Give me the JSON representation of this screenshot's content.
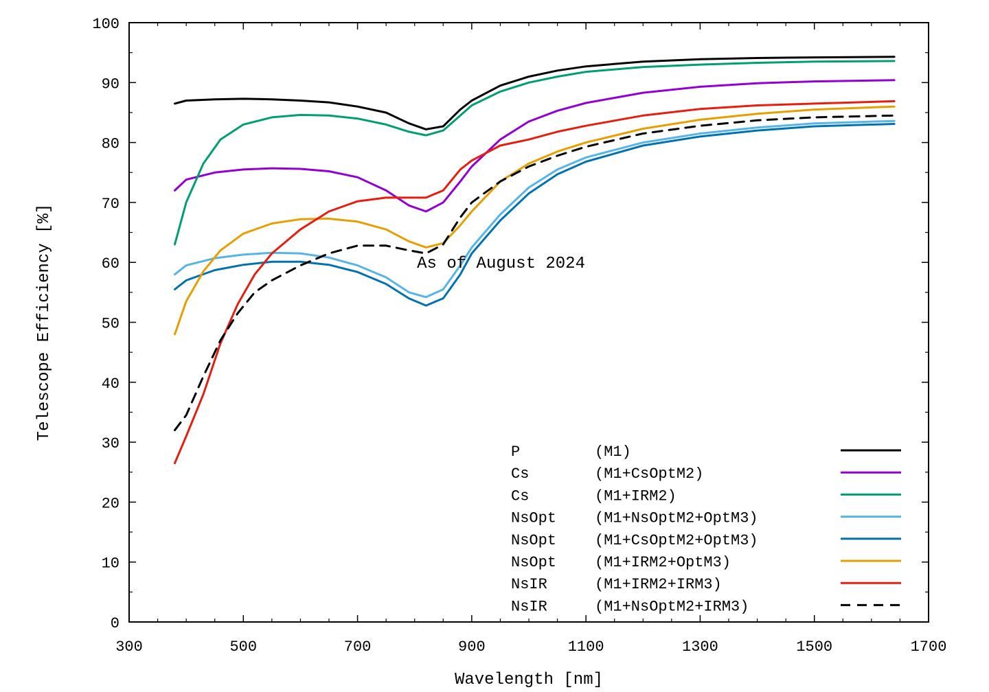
{
  "chart_data": {
    "type": "line",
    "title": "",
    "xlabel": "Wavelength [nm]",
    "ylabel": "Telescope Efficiency [%]",
    "xlim": [
      300,
      1700
    ],
    "ylim": [
      0,
      100
    ],
    "xticks": [
      300,
      500,
      700,
      900,
      1100,
      1300,
      1500,
      1700
    ],
    "yticks": [
      0,
      10,
      20,
      30,
      40,
      50,
      60,
      70,
      80,
      90,
      100
    ],
    "grid": false,
    "legend_position": "bottom-right",
    "annotation": "As of August 2024",
    "series": [
      {
        "label": "P",
        "config": "(M1)",
        "color": "#000000",
        "dash": "solid",
        "points": [
          [
            380,
            86.5
          ],
          [
            400,
            87.0
          ],
          [
            450,
            87.2
          ],
          [
            500,
            87.3
          ],
          [
            550,
            87.2
          ],
          [
            600,
            87.0
          ],
          [
            650,
            86.7
          ],
          [
            700,
            86.0
          ],
          [
            750,
            85.0
          ],
          [
            790,
            83.2
          ],
          [
            820,
            82.2
          ],
          [
            850,
            82.7
          ],
          [
            880,
            85.5
          ],
          [
            900,
            87.0
          ],
          [
            950,
            89.5
          ],
          [
            1000,
            91.0
          ],
          [
            1050,
            92.0
          ],
          [
            1100,
            92.7
          ],
          [
            1200,
            93.5
          ],
          [
            1300,
            93.9
          ],
          [
            1400,
            94.1
          ],
          [
            1500,
            94.2
          ],
          [
            1640,
            94.3
          ]
        ]
      },
      {
        "label": "Cs",
        "config": "(M1+CsOptM2)",
        "color": "#9400d3",
        "dash": "solid",
        "points": [
          [
            380,
            72.0
          ],
          [
            400,
            73.8
          ],
          [
            450,
            75.0
          ],
          [
            500,
            75.5
          ],
          [
            550,
            75.7
          ],
          [
            600,
            75.6
          ],
          [
            650,
            75.2
          ],
          [
            700,
            74.2
          ],
          [
            750,
            72.0
          ],
          [
            790,
            69.5
          ],
          [
            820,
            68.5
          ],
          [
            850,
            70.0
          ],
          [
            880,
            73.5
          ],
          [
            900,
            76.0
          ],
          [
            950,
            80.5
          ],
          [
            1000,
            83.5
          ],
          [
            1050,
            85.3
          ],
          [
            1100,
            86.6
          ],
          [
            1200,
            88.3
          ],
          [
            1300,
            89.3
          ],
          [
            1400,
            89.9
          ],
          [
            1500,
            90.2
          ],
          [
            1640,
            90.4
          ]
        ]
      },
      {
        "label": "Cs",
        "config": "(M1+IRM2)",
        "color": "#009e73",
        "dash": "solid",
        "points": [
          [
            380,
            63.0
          ],
          [
            400,
            70.0
          ],
          [
            430,
            76.5
          ],
          [
            460,
            80.5
          ],
          [
            500,
            83.0
          ],
          [
            550,
            84.2
          ],
          [
            600,
            84.6
          ],
          [
            650,
            84.5
          ],
          [
            700,
            84.0
          ],
          [
            750,
            83.0
          ],
          [
            790,
            81.8
          ],
          [
            820,
            81.2
          ],
          [
            850,
            82.0
          ],
          [
            880,
            84.5
          ],
          [
            900,
            86.2
          ],
          [
            950,
            88.5
          ],
          [
            1000,
            90.0
          ],
          [
            1050,
            91.0
          ],
          [
            1100,
            91.8
          ],
          [
            1200,
            92.6
          ],
          [
            1300,
            93.0
          ],
          [
            1400,
            93.3
          ],
          [
            1500,
            93.5
          ],
          [
            1640,
            93.6
          ]
        ]
      },
      {
        "label": "NsOpt",
        "config": "(M1+NsOptM2+OptM3)",
        "color": "#56b4e9",
        "dash": "solid",
        "points": [
          [
            380,
            58.0
          ],
          [
            400,
            59.5
          ],
          [
            450,
            60.7
          ],
          [
            500,
            61.3
          ],
          [
            550,
            61.6
          ],
          [
            600,
            61.5
          ],
          [
            650,
            60.8
          ],
          [
            700,
            59.5
          ],
          [
            750,
            57.5
          ],
          [
            790,
            55.0
          ],
          [
            820,
            54.2
          ],
          [
            850,
            55.5
          ],
          [
            880,
            59.5
          ],
          [
            900,
            62.5
          ],
          [
            950,
            68.0
          ],
          [
            1000,
            72.5
          ],
          [
            1050,
            75.5
          ],
          [
            1100,
            77.5
          ],
          [
            1200,
            80.0
          ],
          [
            1300,
            81.5
          ],
          [
            1400,
            82.5
          ],
          [
            1500,
            83.2
          ],
          [
            1640,
            83.6
          ]
        ]
      },
      {
        "label": "NsOpt",
        "config": "(M1+CsOptM2+OptM3)",
        "color": "#0072b2",
        "dash": "solid",
        "points": [
          [
            380,
            55.5
          ],
          [
            400,
            57.0
          ],
          [
            450,
            58.7
          ],
          [
            500,
            59.6
          ],
          [
            550,
            60.1
          ],
          [
            600,
            60.1
          ],
          [
            650,
            59.6
          ],
          [
            700,
            58.4
          ],
          [
            750,
            56.4
          ],
          [
            790,
            54.0
          ],
          [
            820,
            52.8
          ],
          [
            850,
            54.0
          ],
          [
            880,
            58.0
          ],
          [
            900,
            61.5
          ],
          [
            950,
            67.0
          ],
          [
            1000,
            71.5
          ],
          [
            1050,
            74.7
          ],
          [
            1100,
            76.8
          ],
          [
            1200,
            79.5
          ],
          [
            1300,
            81.0
          ],
          [
            1400,
            82.0
          ],
          [
            1500,
            82.7
          ],
          [
            1640,
            83.1
          ]
        ]
      },
      {
        "label": "NsOpt",
        "config": "(M1+IRM2+OptM3)",
        "color": "#e69f00",
        "dash": "solid",
        "points": [
          [
            380,
            48.0
          ],
          [
            400,
            53.5
          ],
          [
            430,
            58.5
          ],
          [
            460,
            62.0
          ],
          [
            500,
            64.8
          ],
          [
            550,
            66.5
          ],
          [
            600,
            67.2
          ],
          [
            650,
            67.3
          ],
          [
            700,
            66.8
          ],
          [
            750,
            65.5
          ],
          [
            790,
            63.5
          ],
          [
            820,
            62.5
          ],
          [
            850,
            63.2
          ],
          [
            880,
            66.2
          ],
          [
            900,
            68.5
          ],
          [
            950,
            73.5
          ],
          [
            1000,
            76.5
          ],
          [
            1050,
            78.5
          ],
          [
            1100,
            80.0
          ],
          [
            1200,
            82.3
          ],
          [
            1300,
            83.8
          ],
          [
            1400,
            84.8
          ],
          [
            1500,
            85.5
          ],
          [
            1640,
            86.0
          ]
        ]
      },
      {
        "label": "NsIR",
        "config": "(M1+IRM2+IRM3)",
        "color": "#e51e10",
        "dash": "solid",
        "points": [
          [
            380,
            26.5
          ],
          [
            400,
            31.0
          ],
          [
            430,
            38.0
          ],
          [
            460,
            46.5
          ],
          [
            490,
            53.0
          ],
          [
            520,
            58.0
          ],
          [
            550,
            61.5
          ],
          [
            600,
            65.5
          ],
          [
            650,
            68.5
          ],
          [
            700,
            70.2
          ],
          [
            750,
            70.8
          ],
          [
            790,
            70.8
          ],
          [
            820,
            70.8
          ],
          [
            850,
            72.0
          ],
          [
            880,
            75.5
          ],
          [
            900,
            77.0
          ],
          [
            950,
            79.5
          ],
          [
            1000,
            80.5
          ],
          [
            1050,
            81.8
          ],
          [
            1100,
            82.8
          ],
          [
            1200,
            84.5
          ],
          [
            1300,
            85.6
          ],
          [
            1400,
            86.2
          ],
          [
            1500,
            86.5
          ],
          [
            1640,
            86.9
          ]
        ]
      },
      {
        "label": "NsIR",
        "config": "(M1+NsOptM2+IRM3)",
        "color": "#000000",
        "dash": "dashed",
        "points": [
          [
            380,
            32.0
          ],
          [
            400,
            34.5
          ],
          [
            430,
            41.0
          ],
          [
            460,
            47.0
          ],
          [
            490,
            51.5
          ],
          [
            520,
            55.0
          ],
          [
            550,
            57.0
          ],
          [
            600,
            59.5
          ],
          [
            650,
            61.5
          ],
          [
            700,
            62.8
          ],
          [
            750,
            62.8
          ],
          [
            790,
            62.0
          ],
          [
            820,
            61.5
          ],
          [
            850,
            63.0
          ],
          [
            880,
            67.5
          ],
          [
            900,
            70.0
          ],
          [
            950,
            73.5
          ],
          [
            1000,
            76.0
          ],
          [
            1050,
            77.8
          ],
          [
            1100,
            79.3
          ],
          [
            1200,
            81.5
          ],
          [
            1300,
            82.8
          ],
          [
            1400,
            83.7
          ],
          [
            1500,
            84.2
          ],
          [
            1640,
            84.5
          ]
        ]
      }
    ]
  }
}
